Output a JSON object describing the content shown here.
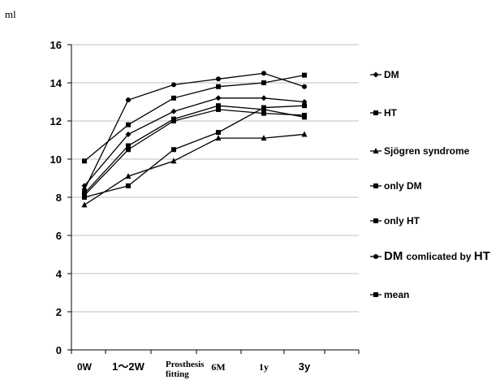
{
  "chart_data": {
    "type": "line",
    "ylabel": "ml",
    "ylim": [
      0,
      16
    ],
    "yticks": [
      0,
      2,
      4,
      6,
      8,
      10,
      12,
      14,
      16
    ],
    "grid": true,
    "legend_position": "right",
    "categories": [
      "0W",
      "1～2W",
      "Prosthesis fitting",
      "6M",
      "1y",
      "3y"
    ],
    "series": [
      {
        "name": "DM",
        "marker": "diamond",
        "values": [
          8.6,
          11.3,
          12.5,
          13.2,
          13.2,
          13.0
        ]
      },
      {
        "name": "HT",
        "marker": "square",
        "values": [
          8.2,
          10.7,
          12.1,
          12.8,
          12.6,
          12.2
        ]
      },
      {
        "name": "Sjögren syndrome",
        "marker": "triangle",
        "values": [
          7.6,
          9.1,
          9.9,
          11.1,
          11.1,
          11.3
        ]
      },
      {
        "name": "only DM",
        "marker": "square",
        "values": [
          9.9,
          11.8,
          13.2,
          13.8,
          14.0,
          14.4
        ]
      },
      {
        "name": "only HT",
        "marker": "square",
        "values": [
          8.0,
          8.6,
          10.5,
          11.4,
          12.7,
          12.8
        ]
      },
      {
        "name": "DM comlicated by HT",
        "marker": "circle",
        "values": [
          8.4,
          13.1,
          13.9,
          14.2,
          14.5,
          13.8
        ]
      },
      {
        "name": "mean",
        "marker": "square",
        "values": [
          8.1,
          10.5,
          12.0,
          12.6,
          12.4,
          12.3
        ]
      }
    ]
  },
  "legend_labels": [
    "DM",
    "HT",
    "Sjögren syndrome",
    "only DM",
    "only HT",
    "DM  comlicated by HT",
    "mean"
  ],
  "colors": {
    "line": "#000000",
    "grid": "#bfbfbf",
    "axis": "#000000"
  }
}
